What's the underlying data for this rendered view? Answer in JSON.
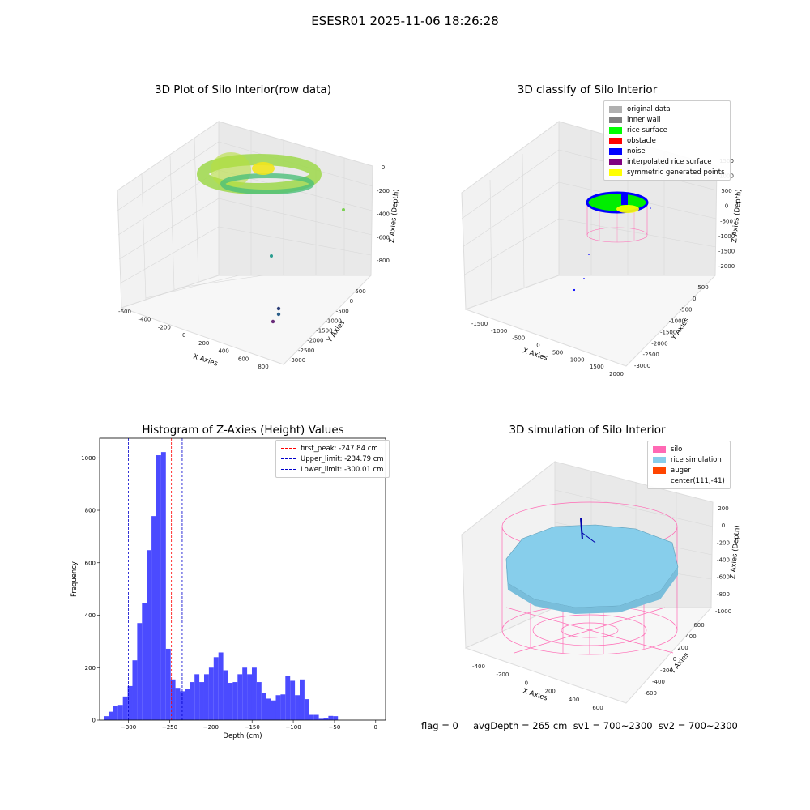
{
  "figure": {
    "suptitle": "ESESR01 2025-11-06 18:26:28",
    "footer": "flag = 0     avgDepth = 265 cm  sv1 = 700~2300  sv2 = 700~2300"
  },
  "colors": {
    "histogram_bar": "#4b4bff",
    "first_peak": "#ff0000",
    "limit": "#0000cc",
    "silo": "#ff69b4",
    "rice_simulation": "#87ceeb",
    "auger": "#ff4500"
  },
  "panels": {
    "raw": {
      "title": "3D Plot of Silo Interior(row data)",
      "x_axis": {
        "label": "X Axies",
        "ticks": [
          "-600",
          "-400",
          "-200",
          "0",
          "200",
          "400",
          "600",
          "800"
        ]
      },
      "y_axis": {
        "label": "Y Axies",
        "ticks": [
          "500",
          "0",
          "-500",
          "-1000",
          "-1500",
          "-2000",
          "-2500",
          "-3000"
        ]
      },
      "z_axis": {
        "label": "Z Axies (Depth)",
        "ticks": [
          "0",
          "-200",
          "-400",
          "-600",
          "-800"
        ]
      }
    },
    "classify": {
      "title": "3D classify of Silo Interior",
      "legend": [
        {
          "label": "original data",
          "color": "#b0b0b0"
        },
        {
          "label": "inner wall",
          "color": "#808080"
        },
        {
          "label": "rice surface",
          "color": "#00ff00"
        },
        {
          "label": "obstacle",
          "color": "#ff0000"
        },
        {
          "label": "noise",
          "color": "#0000ff"
        },
        {
          "label": "interpolated rice surface",
          "color": "#800080"
        },
        {
          "label": "symmetric generated points",
          "color": "#ffff00"
        }
      ],
      "x_axis": {
        "label": "X Axies",
        "ticks": [
          "-1500",
          "-1000",
          "-500",
          "0",
          "500",
          "1000",
          "1500",
          "2000"
        ]
      },
      "y_axis": {
        "label": "Y Axies",
        "ticks": [
          "500",
          "0",
          "-500",
          "-1000",
          "-1500",
          "-2000",
          "-2500",
          "-3000"
        ]
      },
      "z_axis": {
        "label": "Z Axies (Depth)",
        "ticks": [
          "1500",
          "1000",
          "500",
          "0",
          "-500",
          "-1000",
          "-1500",
          "-2000"
        ]
      }
    },
    "simulation": {
      "title": "3D simulation of Silo Interior",
      "legend": [
        {
          "label": "silo",
          "color": "#ff69b4"
        },
        {
          "label": "rice simulation",
          "color": "#87ceeb"
        },
        {
          "label": "auger",
          "color": "#ff4500"
        },
        {
          "label": "center(111,-41)",
          "color": ""
        }
      ],
      "x_axis": {
        "label": "X Axies",
        "ticks": [
          "-400",
          "-200",
          "0",
          "200",
          "400",
          "600"
        ]
      },
      "y_axis": {
        "label": "Y Axies",
        "ticks": [
          "600",
          "400",
          "200",
          "0",
          "-200",
          "-400",
          "-600"
        ]
      },
      "z_axis": {
        "label": "Z Axies (Depth)",
        "ticks": [
          "200",
          "0",
          "-200",
          "-400",
          "-600",
          "-800",
          "-1000"
        ]
      }
    }
  },
  "chart_data": [
    {
      "type": "histogram",
      "title": "Histogram of Z-Axies (Height) Values",
      "xlabel": "Depth (cm)",
      "ylabel": "Frequency",
      "xlim": [
        -335,
        12
      ],
      "ylim": [
        0,
        1075
      ],
      "x_ticks": [
        -300,
        -250,
        -200,
        -150,
        -100,
        -50,
        0
      ],
      "y_ticks": [
        0,
        200,
        400,
        600,
        800,
        1000
      ],
      "bin_start": -330,
      "bin_width": 5.8,
      "values": [
        15,
        32,
        55,
        58,
        90,
        130,
        228,
        370,
        445,
        648,
        778,
        1010,
        1022,
        272,
        155,
        123,
        110,
        120,
        145,
        175,
        145,
        175,
        200,
        240,
        258,
        190,
        142,
        145,
        175,
        200,
        175,
        200,
        145,
        103,
        82,
        75,
        95,
        98,
        168,
        150,
        95,
        155,
        80,
        20,
        20,
        5,
        8,
        16,
        15,
        0
      ],
      "reference_lines": [
        {
          "x": -247.84,
          "color": "#ff0000",
          "label": "first_peak: -247.84 cm"
        },
        {
          "x": -234.79,
          "color": "#0000cc",
          "label": "Upper_limit: -234.79 cm"
        },
        {
          "x": -300.01,
          "color": "#0000cc",
          "label": "Lower_limit: -300.01 cm"
        }
      ]
    }
  ]
}
